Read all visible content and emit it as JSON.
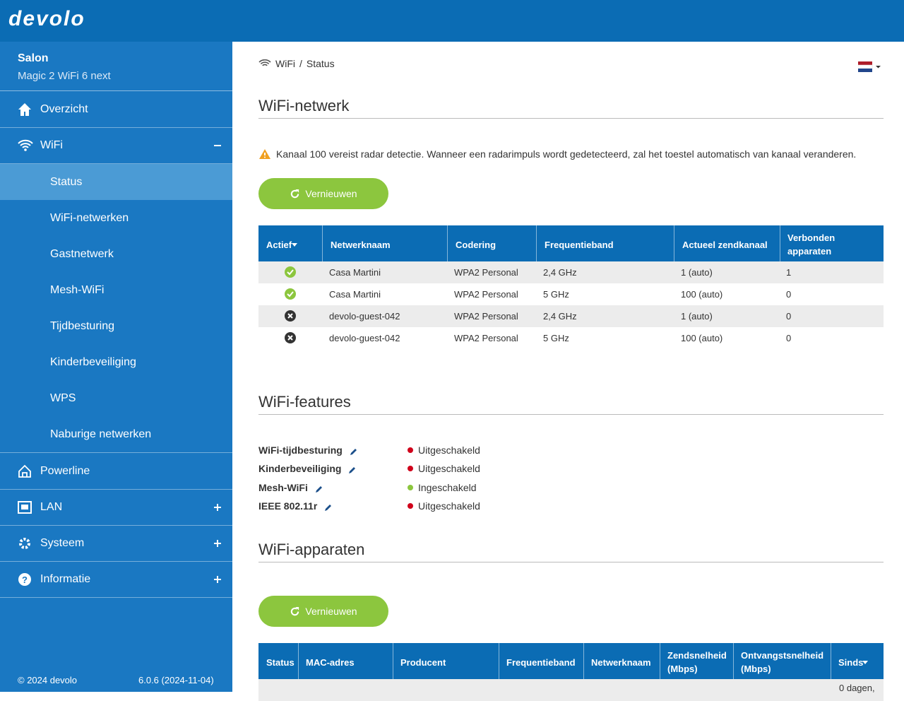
{
  "header": {
    "logo": "devolo"
  },
  "sidebar": {
    "device_name": "Salon",
    "device_model": "Magic 2 WiFi 6 next",
    "menu": [
      "Overzicht",
      "WiFi",
      "Powerline",
      "LAN",
      "Systeem",
      "Informatie"
    ],
    "submenu": [
      "Status",
      "WiFi-netwerken",
      "Gastnetwerk",
      "Mesh-WiFi",
      "Tijdbesturing",
      "Kinderbeveiliging",
      "WPS",
      "Naburige netwerken"
    ],
    "footer": {
      "copyright": "© 2024 devolo",
      "version": "6.0.6 (2024-11-04)"
    }
  },
  "breadcrumb": {
    "parent": "WiFi",
    "separator": "/",
    "current": "Status"
  },
  "networks": {
    "title": "WiFi-netwerk",
    "warning": "Kanaal 100 vereist radar detectie. Wanneer een radarimpuls wordt gedetecteerd, zal het toestel automatisch van kanaal veranderen.",
    "button": "Vernieuwen",
    "table": {
      "headers": [
        "Actief",
        "Netwerknaam",
        "Codering",
        "Frequentieband",
        "Actueel zendkanaal",
        "Verbonden apparaten"
      ],
      "rows": [
        {
          "active": true,
          "cells": [
            "Casa Martini",
            "WPA2 Personal",
            "2,4 GHz",
            "1 (auto)",
            "1"
          ]
        },
        {
          "active": true,
          "cells": [
            "Casa Martini",
            "WPA2 Personal",
            "5 GHz",
            "100 (auto)",
            "0"
          ]
        },
        {
          "active": false,
          "cells": [
            "devolo-guest-042",
            "WPA2 Personal",
            "2,4 GHz",
            "1 (auto)",
            "0"
          ]
        },
        {
          "active": false,
          "cells": [
            "devolo-guest-042",
            "WPA2 Personal",
            "5 GHz",
            "100 (auto)",
            "0"
          ]
        }
      ]
    }
  },
  "features": {
    "title": "WiFi-features",
    "items": [
      {
        "label": "WiFi-tijdbesturing",
        "status": "Uitgeschakeld",
        "enabled": false
      },
      {
        "label": "Kinderbeveiliging",
        "status": "Uitgeschakeld",
        "enabled": false
      },
      {
        "label": "Mesh-WiFi",
        "status": "Ingeschakeld",
        "enabled": true
      },
      {
        "label": "IEEE 802.11r",
        "status": "Uitgeschakeld",
        "enabled": false
      }
    ]
  },
  "devices": {
    "title": "WiFi-apparaten",
    "button": "Vernieuwen",
    "table": {
      "headers": [
        "Status",
        "MAC-adres",
        "Producent",
        "Frequentieband",
        "Netwerknaam",
        "Zendsnelheid (Mbps)",
        "Ontvangstsnelheid (Mbps)",
        "Sinds"
      ],
      "rows": [
        {
          "since": "0 dagen,"
        }
      ]
    }
  }
}
